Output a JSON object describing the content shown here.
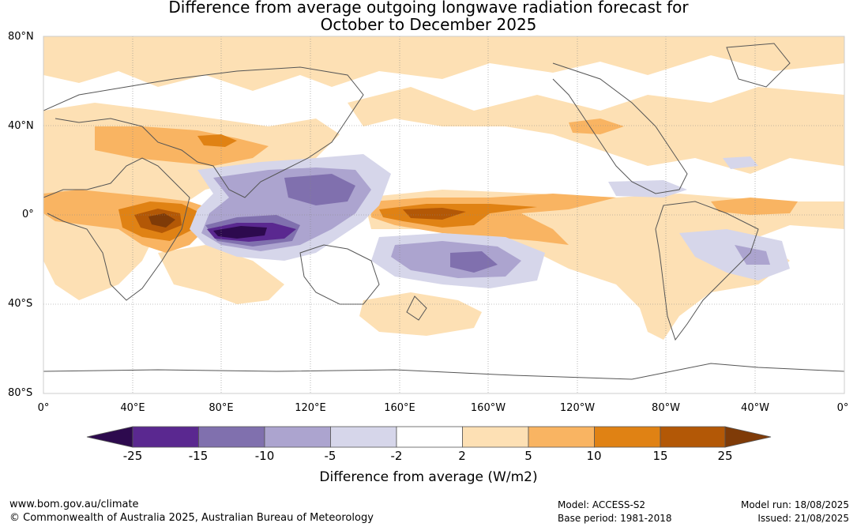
{
  "title": {
    "line1": "Difference from average outgoing longwave radiation forecast for",
    "line2": "October to December 2025"
  },
  "map": {
    "lat_labels": [
      "80°N",
      "40°N",
      "0°",
      "40°S",
      "80°S"
    ],
    "lon_labels": [
      "0°",
      "40°E",
      "80°E",
      "120°E",
      "160°E",
      "160°W",
      "120°W",
      "80°W",
      "40°W",
      "0°"
    ],
    "colors": {
      "neg_25": "#2d0a4e",
      "neg_15": "#5a2890",
      "neg_10": "#8070ae",
      "neg_5": "#aca4cf",
      "neg_2": "#d6d6ea",
      "neutral": "#ffffff",
      "pos_2": "#fde0b4",
      "pos_5": "#f9b462",
      "pos_10": "#e08214",
      "pos_15": "#b35806",
      "pos_25": "#7f3b08",
      "coast": "#555555",
      "grid": "#888888"
    }
  },
  "colorbar": {
    "ticks": [
      "-25",
      "-15",
      "-10",
      "-5",
      "-2",
      "2",
      "5",
      "10",
      "15",
      "25"
    ],
    "label": "Difference from average (W/m2)"
  },
  "footer": {
    "website": "www.bom.gov.au/climate",
    "copyright": "© Commonwealth of Australia 2025, Australian Bureau of Meteorology",
    "model": "Model: ACCESS-S2",
    "base_period": "Base period: 1981-2018",
    "model_run": "Model run: 18/08/2025",
    "issued": "Issued: 21/08/2025"
  }
}
